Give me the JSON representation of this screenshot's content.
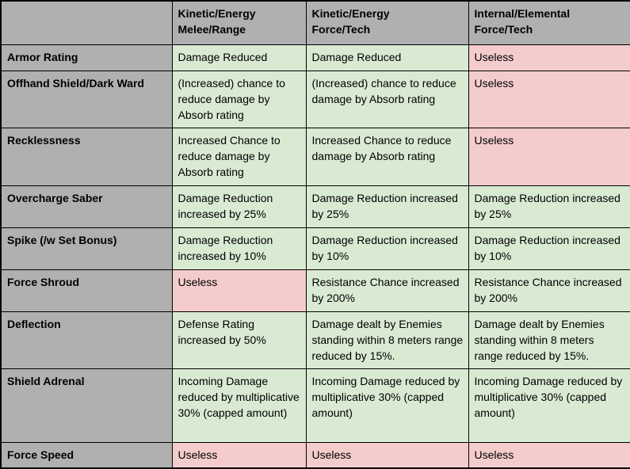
{
  "colors": {
    "header_bg": "#b0b0b0",
    "useful_bg": "#d9ead3",
    "useless_bg": "#f4cccc",
    "border": "#000000",
    "text": "#000000"
  },
  "table": {
    "header": {
      "corner": "",
      "columns": [
        "Kinetic/Energy\nMelee/Range",
        "Kinetic/Energy\nForce/Tech",
        "Internal/Elemental\nForce/Tech"
      ]
    },
    "rows": [
      {
        "label": "Armor Rating",
        "cells": [
          {
            "text": "Damage Reduced",
            "status": "useful"
          },
          {
            "text": "Damage Reduced",
            "status": "useful"
          },
          {
            "text": "Useless",
            "status": "useless"
          }
        ]
      },
      {
        "label": "Offhand Shield/Dark Ward",
        "cells": [
          {
            "text": "(Increased) chance to reduce damage by Absorb rating",
            "status": "useful"
          },
          {
            "text": "(Increased) chance to reduce damage by Absorb rating",
            "status": "useful"
          },
          {
            "text": "Useless",
            "status": "useless"
          }
        ]
      },
      {
        "label": "Recklessness",
        "cells": [
          {
            "text": "Increased Chance to reduce damage by Absorb rating",
            "status": "useful"
          },
          {
            "text": "Increased Chance to reduce damage by Absorb rating",
            "status": "useful"
          },
          {
            "text": "Useless",
            "status": "useless"
          }
        ]
      },
      {
        "label": "Overcharge Saber",
        "cells": [
          {
            "text": "Damage Reduction increased by 25%",
            "status": "useful"
          },
          {
            "text": "Damage Reduction increased by 25%",
            "status": "useful"
          },
          {
            "text": "Damage Reduction increased by 25%",
            "status": "useful"
          }
        ]
      },
      {
        "label": "Spike (/w Set Bonus)",
        "cells": [
          {
            "text": "Damage Reduction increased by 10%",
            "status": "useful"
          },
          {
            "text": "Damage Reduction increased by 10%",
            "status": "useful"
          },
          {
            "text": "Damage Reduction increased by 10%",
            "status": "useful"
          }
        ]
      },
      {
        "label": "Force Shroud",
        "cells": [
          {
            "text": "Useless",
            "status": "useless"
          },
          {
            "text": "Resistance Chance increased by 200%",
            "status": "useful"
          },
          {
            "text": "Resistance Chance increased by 200%",
            "status": "useful"
          }
        ]
      },
      {
        "label": "Deflection",
        "cells": [
          {
            "text": "Defense Rating increased by 50%",
            "status": "useful"
          },
          {
            "text": "Damage dealt by Enemies standing within 8 meters range reduced by 15%.",
            "status": "useful"
          },
          {
            "text": "Damage dealt by Enemies standing within 8 meters range reduced by 15%.",
            "status": "useful"
          }
        ]
      },
      {
        "label": "Shield Adrenal",
        "cells": [
          {
            "text": "Incoming Damage reduced by multiplicative 30% (capped amount)",
            "status": "useful"
          },
          {
            "text": "Incoming Damage reduced by multiplicative 30% (capped amount)",
            "status": "useful"
          },
          {
            "text": "Incoming Damage reduced by multiplicative 30% (capped amount)",
            "status": "useful"
          }
        ]
      },
      {
        "label": "Force Speed",
        "cells": [
          {
            "text": "Useless",
            "status": "useless"
          },
          {
            "text": "Useless",
            "status": "useless"
          },
          {
            "text": "Useless",
            "status": "useless"
          }
        ]
      }
    ]
  }
}
